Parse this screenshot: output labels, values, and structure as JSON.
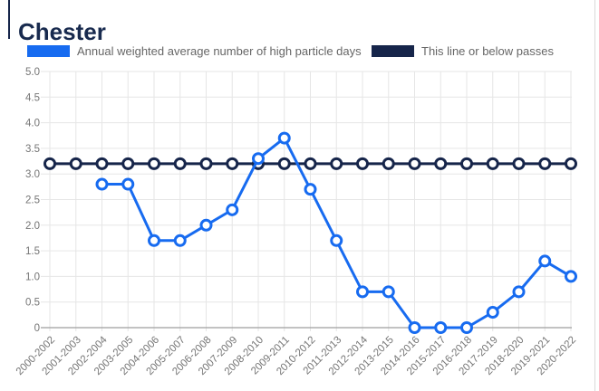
{
  "page": {
    "title": "Chester"
  },
  "legend": {
    "items": [
      {
        "label": "Annual weighted average number of high particle days",
        "color": "#176bf0"
      },
      {
        "label": "This line or below passes",
        "color": "#16254a"
      }
    ]
  },
  "chart_data": {
    "type": "line",
    "title": "Chester",
    "categories": [
      "2000-2002",
      "2001-2003",
      "2002-2004",
      "2003-2005",
      "2004-2006",
      "2005-2007",
      "2006-2008",
      "2007-2009",
      "2008-2010",
      "2009-2011",
      "2010-2012",
      "2011-2013",
      "2012-2014",
      "2013-2015",
      "2014-2016",
      "2015-2017",
      "2016-2018",
      "2017-2019",
      "2018-2020",
      "2019-2021",
      "2020-2022"
    ],
    "series": [
      {
        "name": "This line or below passes",
        "color": "#16254a",
        "values": [
          3.2,
          3.2,
          3.2,
          3.2,
          3.2,
          3.2,
          3.2,
          3.2,
          3.2,
          3.2,
          3.2,
          3.2,
          3.2,
          3.2,
          3.2,
          3.2,
          3.2,
          3.2,
          3.2,
          3.2,
          3.2
        ]
      },
      {
        "name": "Annual weighted average number of high particle days",
        "color": "#176bf0",
        "values": [
          null,
          null,
          2.8,
          2.8,
          1.7,
          1.7,
          2.0,
          2.3,
          3.3,
          3.7,
          2.7,
          1.7,
          0.7,
          0.7,
          0,
          0,
          0,
          0.3,
          0.7,
          1.3,
          1.0
        ]
      }
    ],
    "xlabel": "",
    "ylabel": "",
    "ylim": [
      0,
      5
    ],
    "ytick_step": 0.5,
    "ytick_labels": [
      "0",
      "0.5",
      "1.0",
      "1.5",
      "2.0",
      "2.5",
      "3.0",
      "3.5",
      "4.0",
      "4.5",
      "5.0"
    ],
    "grid": true,
    "legend_position": "top",
    "marker_style": "hollow-circle"
  },
  "colors": {
    "title": "#182a4e",
    "axis_text": "#757575",
    "grid_line": "#e6e6e6",
    "axis_line": "#9e9e9e",
    "border": "#d9d9d9"
  }
}
